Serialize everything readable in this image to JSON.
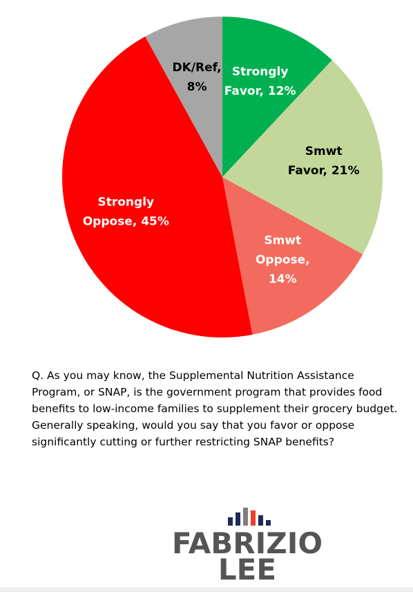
{
  "chart_data": {
    "type": "pie",
    "values": [
      12,
      21,
      14,
      45,
      8
    ],
    "value_labels": [
      [
        "Strongly",
        "Favor, 12%"
      ],
      [
        "Smwt",
        "Favor, 21%"
      ],
      [
        "Smwt",
        "Oppose,",
        "14%"
      ],
      [
        "Strongly",
        "Oppose, 45%"
      ],
      [
        "DK/Ref,",
        "8%"
      ]
    ],
    "colors": [
      "#00b050",
      "#c4d79b",
      "#f26b5e",
      "#ff0000",
      "#a6a6a6"
    ],
    "label_colors": [
      "#ffffff",
      "#000000",
      "#ffffff",
      "#ffffff",
      "#000000"
    ]
  },
  "question": "Q. As you may know, the Supplemental Nutrition Assistance Program, or SNAP, is the government program that provides food benefits to low-income families to supplement their grocery budget. Generally speaking, would you say that you favor or oppose significantly cutting or further restricting SNAP benefits?",
  "logo": {
    "line1": "FABRIZIO",
    "line2": "LEE"
  }
}
